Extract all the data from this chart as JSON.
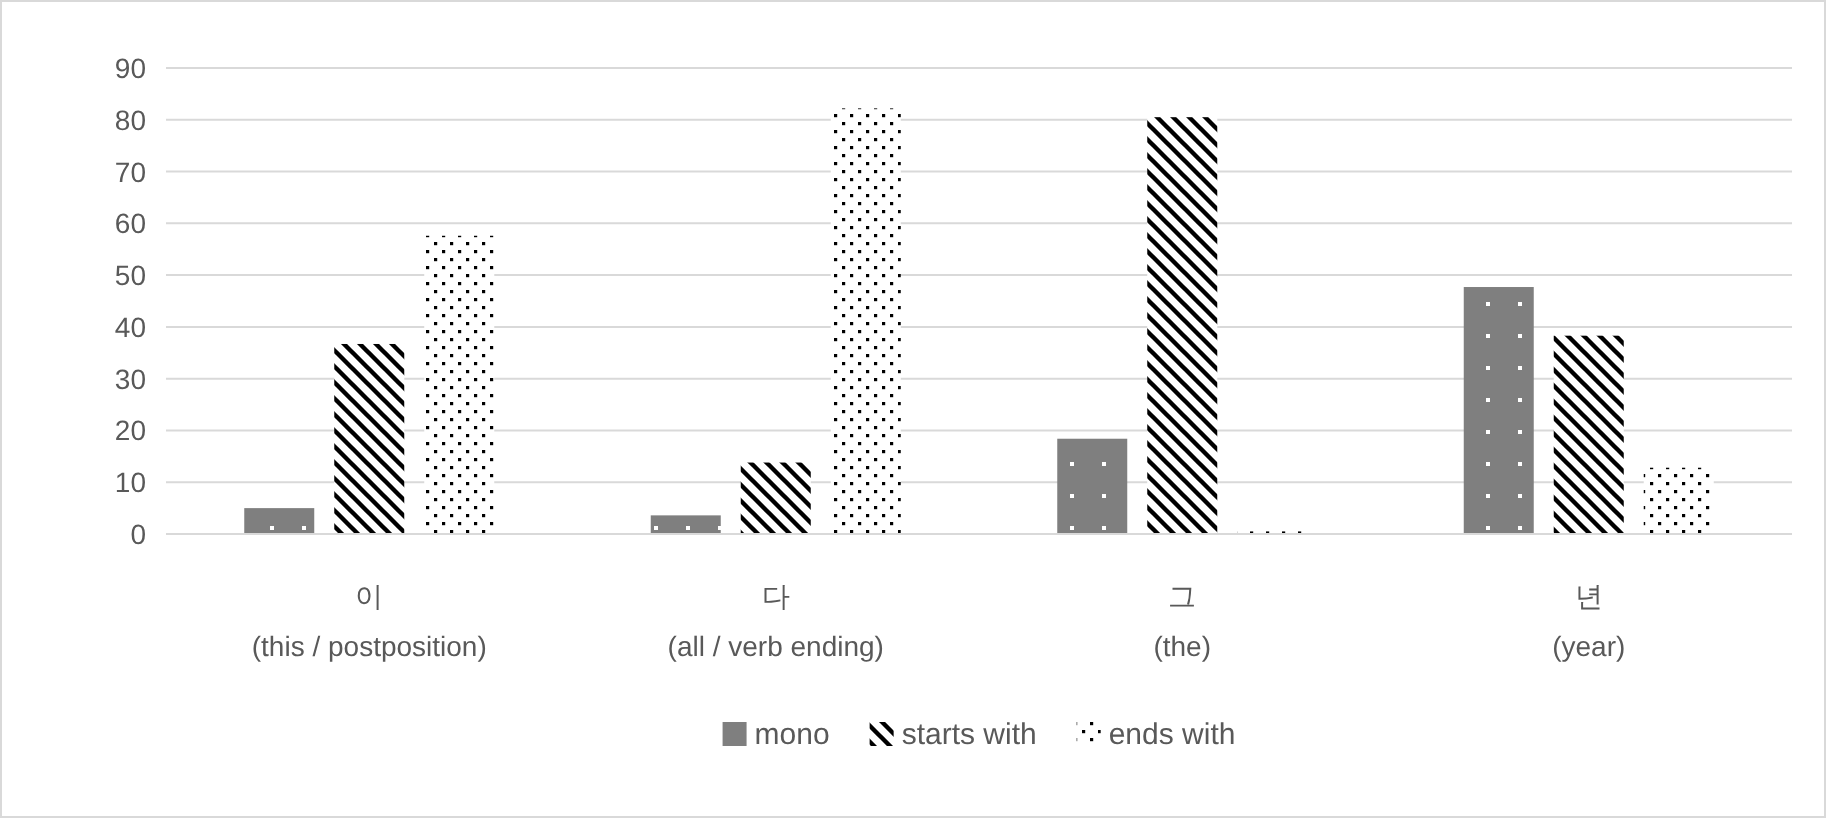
{
  "chart_data": {
    "type": "bar",
    "categories": [
      "이\n(this / postposition)",
      "다\n(all / verb ending)",
      "그\n(the)",
      "년\n(year)"
    ],
    "series": [
      {
        "name": "mono",
        "color": "#7f7f7f",
        "values": [
          5,
          3.6,
          18.4,
          47.7
        ]
      },
      {
        "name": "starts with",
        "color": "#000000",
        "values": [
          36.7,
          13.8,
          80.5,
          38.3
        ]
      },
      {
        "name": "ends with",
        "color": "#000000",
        "values": [
          57.6,
          82.2,
          0.5,
          12.8
        ]
      }
    ],
    "ylim": [
      0,
      90
    ],
    "yticks": [
      0,
      10,
      20,
      30,
      40,
      50,
      60,
      70,
      80,
      90
    ],
    "grid": "y",
    "legend": "bottom"
  }
}
